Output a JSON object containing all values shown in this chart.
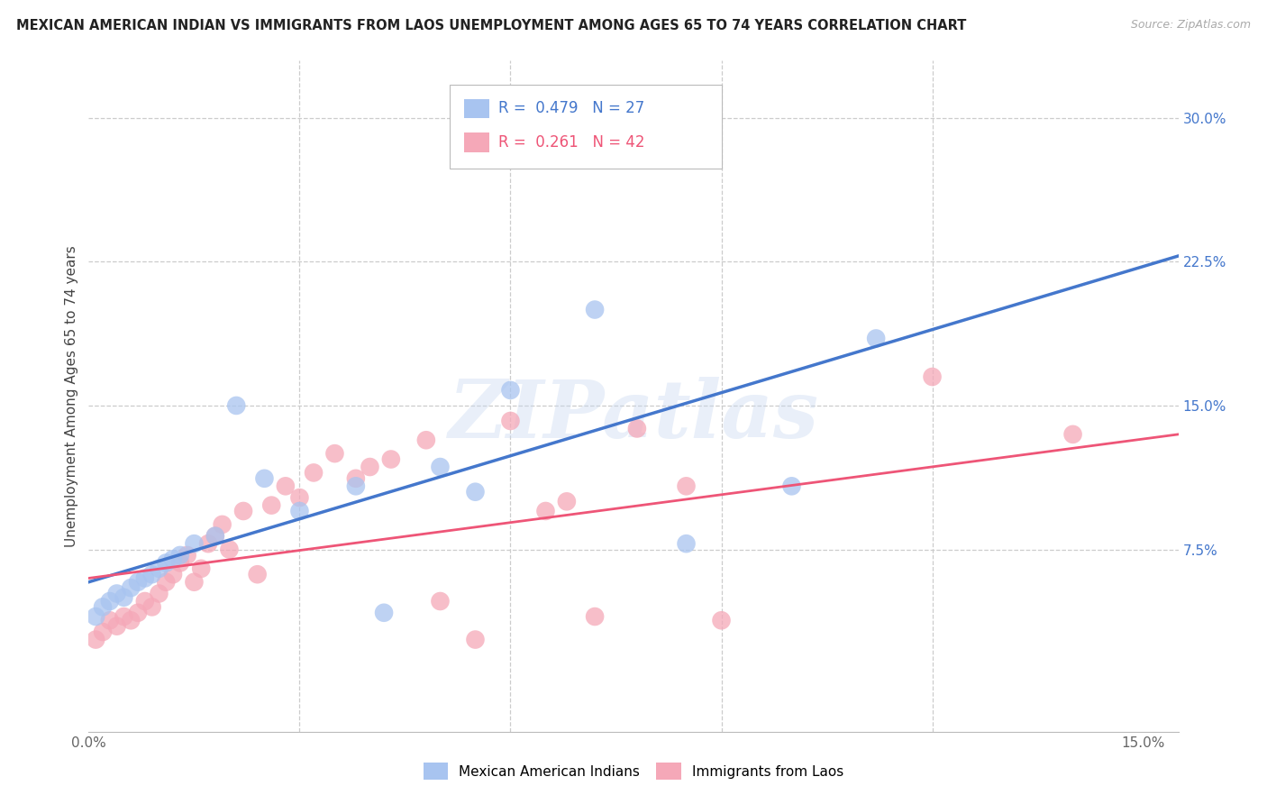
{
  "title": "MEXICAN AMERICAN INDIAN VS IMMIGRANTS FROM LAOS UNEMPLOYMENT AMONG AGES 65 TO 74 YEARS CORRELATION CHART",
  "source": "Source: ZipAtlas.com",
  "ylabel": "Unemployment Among Ages 65 to 74 years",
  "xlim": [
    0.0,
    0.155
  ],
  "ylim": [
    -0.02,
    0.33
  ],
  "yticks_right": [
    0.075,
    0.15,
    0.225,
    0.3
  ],
  "ytick_labels_right": [
    "7.5%",
    "15.0%",
    "22.5%",
    "30.0%"
  ],
  "xtick_positions": [
    0.0,
    0.03,
    0.06,
    0.09,
    0.12,
    0.15
  ],
  "xtick_labels": [
    "0.0%",
    "",
    "",
    "",
    "",
    "15.0%"
  ],
  "blue_R": "0.479",
  "blue_N": "27",
  "pink_R": "0.261",
  "pink_N": "42",
  "blue_scatter_color": "#a8c4f0",
  "pink_scatter_color": "#f5a8b8",
  "blue_line_color": "#4477cc",
  "pink_line_color": "#ee5577",
  "watermark": "ZIPatlas",
  "legend_label_blue": "Mexican American Indians",
  "legend_label_pink": "Immigrants from Laos",
  "blue_trendline_x": [
    0.0,
    0.155
  ],
  "blue_trendline_y": [
    0.058,
    0.228
  ],
  "pink_trendline_x": [
    0.0,
    0.155
  ],
  "pink_trendline_y": [
    0.06,
    0.135
  ],
  "blue_x": [
    0.001,
    0.002,
    0.003,
    0.004,
    0.005,
    0.006,
    0.007,
    0.008,
    0.009,
    0.01,
    0.011,
    0.012,
    0.013,
    0.015,
    0.018,
    0.021,
    0.025,
    0.03,
    0.038,
    0.042,
    0.05,
    0.055,
    0.06,
    0.072,
    0.085,
    0.1,
    0.112
  ],
  "blue_y": [
    0.04,
    0.045,
    0.048,
    0.052,
    0.05,
    0.055,
    0.058,
    0.06,
    0.062,
    0.065,
    0.068,
    0.07,
    0.072,
    0.078,
    0.082,
    0.15,
    0.112,
    0.095,
    0.108,
    0.042,
    0.118,
    0.105,
    0.158,
    0.2,
    0.078,
    0.108,
    0.185
  ],
  "pink_x": [
    0.001,
    0.002,
    0.003,
    0.004,
    0.005,
    0.006,
    0.007,
    0.008,
    0.009,
    0.01,
    0.011,
    0.012,
    0.013,
    0.014,
    0.015,
    0.016,
    0.017,
    0.018,
    0.019,
    0.02,
    0.022,
    0.024,
    0.026,
    0.028,
    0.03,
    0.032,
    0.035,
    0.038,
    0.04,
    0.043,
    0.048,
    0.05,
    0.055,
    0.06,
    0.065,
    0.068,
    0.072,
    0.078,
    0.085,
    0.09,
    0.12,
    0.14
  ],
  "pink_y": [
    0.028,
    0.032,
    0.038,
    0.035,
    0.04,
    0.038,
    0.042,
    0.048,
    0.045,
    0.052,
    0.058,
    0.062,
    0.068,
    0.072,
    0.058,
    0.065,
    0.078,
    0.082,
    0.088,
    0.075,
    0.095,
    0.062,
    0.098,
    0.108,
    0.102,
    0.115,
    0.125,
    0.112,
    0.118,
    0.122,
    0.132,
    0.048,
    0.028,
    0.142,
    0.095,
    0.1,
    0.04,
    0.138,
    0.108,
    0.038,
    0.165,
    0.135
  ]
}
